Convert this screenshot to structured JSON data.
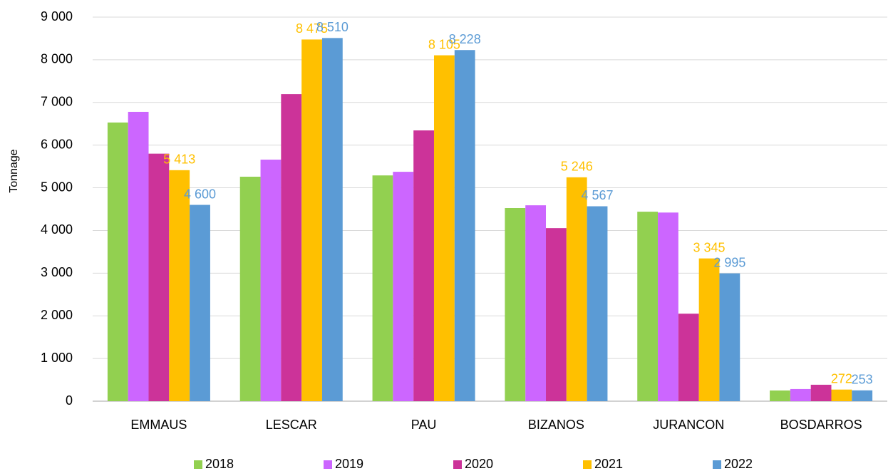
{
  "chart_data": {
    "type": "bar",
    "y_label": "Tonnage",
    "categories": [
      "EMMAUS",
      "LESCAR",
      "PAU",
      "BIZANOS",
      "JURANCON",
      "BOSDARROS"
    ],
    "series": [
      {
        "name": "2018",
        "color": "#92d050",
        "values": [
          6530,
          5260,
          5290,
          4525,
          4440,
          250
        ]
      },
      {
        "name": "2019",
        "color": "#cc66ff",
        "values": [
          6780,
          5660,
          5375,
          4590,
          4420,
          285
        ]
      },
      {
        "name": "2020",
        "color": "#cc3399",
        "values": [
          5800,
          7195,
          6345,
          4055,
          2050,
          385
        ]
      },
      {
        "name": "2021",
        "color": "#ffc000",
        "values": [
          5413,
          8475,
          8105,
          5246,
          3345,
          272
        ],
        "value_labels": [
          "5 413",
          "8 475",
          "8 105",
          "5 246",
          "3 345",
          "272"
        ]
      },
      {
        "name": "2022",
        "color": "#5b9bd5",
        "values": [
          4600,
          8510,
          8228,
          4567,
          2995,
          253
        ],
        "value_labels": [
          "4 600",
          "8 510",
          "8 228",
          "4 567",
          "2 995",
          "253"
        ]
      }
    ],
    "ylim": [
      0,
      9000
    ],
    "yticks": [
      0,
      {
        "value": 1000,
        "label": "1 000"
      },
      {
        "value": 2000,
        "label": "2 000"
      },
      {
        "value": 3000,
        "label": "3 000"
      },
      {
        "value": 4000,
        "label": "4 000"
      },
      {
        "value": 5000,
        "label": "5 000"
      },
      {
        "value": 6000,
        "label": "6 000"
      },
      {
        "value": 7000,
        "label": "7 000"
      },
      {
        "value": 8000,
        "label": "8 000"
      },
      {
        "value": 9000,
        "label": "9 000"
      }
    ],
    "grid": true,
    "legend": "bottom"
  }
}
